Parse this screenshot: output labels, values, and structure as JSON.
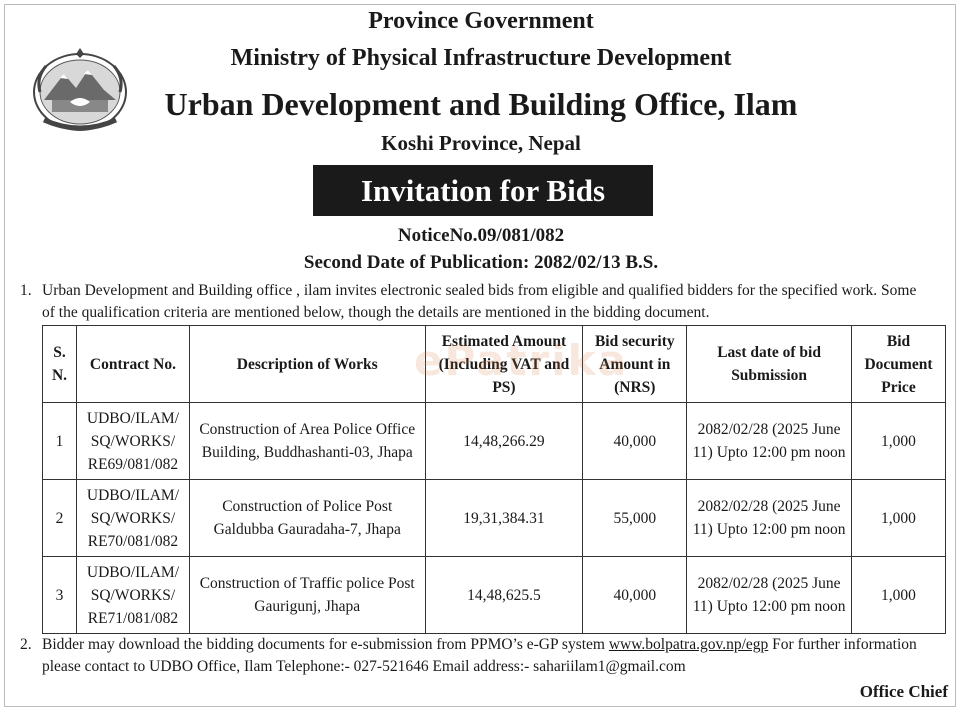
{
  "header": {
    "line1": "Province Government",
    "line2": "Ministry of Physical Infrastructure Development",
    "line3": "Urban Development and Building Office, Ilam",
    "line4": "Koshi Province, Nepal",
    "banner": "Invitation for Bids",
    "notice_no": "NoticeNo.09/081/082",
    "publication": "Second Date of Publication: 2082/02/13 B.S."
  },
  "emblem": {
    "icon": "nepal-emblem-icon"
  },
  "para1": {
    "num": "1.",
    "text": "Urban Development and Building office , ilam invites electronic sealed bids from eligible and qualified bidders for the specified work. Some of the qualification criteria are mentioned below, though the details are mentioned in the bidding document."
  },
  "table": {
    "headers": [
      "S. N.",
      "Contract No.",
      "Description of Works",
      "Estimated Amount (Including VAT and PS)",
      "Bid security Amount in (NRS)",
      "Last date of bid Submission",
      "Bid Document Price"
    ],
    "rows": [
      [
        "1",
        "UDBO/ILAM/ SQ/WORKS/ RE69/081/082",
        "Construction of Area Police Office Building, Buddhashanti-03, Jhapa",
        "14,48,266.29",
        "40,000",
        "2082/02/28 (2025 June 11) Upto 12:00 pm noon",
        "1,000"
      ],
      [
        "2",
        "UDBO/ILAM/ SQ/WORKS/ RE70/081/082",
        "Construction of Police Post Galdubba Gauradaha-7, Jhapa",
        "19,31,384.31",
        "55,000",
        "2082/02/28 (2025 June 11) Upto 12:00 pm noon",
        "1,000"
      ],
      [
        "3",
        "UDBO/ILAM/ SQ/WORKS/ RE71/081/082",
        "Construction of Traffic police Post Gaurigunj, Jhapa",
        "14,48,625.5",
        "40,000",
        "2082/02/28 (2025 June 11) Upto 12:00 pm noon",
        "1,000"
      ]
    ]
  },
  "watermark": "ePatrika",
  "para2": {
    "num": "2.",
    "text_before": "Bidder may download the bidding documents for e-submission from PPMO’s e-GP system ",
    "link": "www.bolpatra.gov.np/egp",
    "text_after": " For further information please contact to UDBO Office, Ilam Telephone:- 027-521646 Email address:- sahariilam1@gmail.com"
  },
  "footer": {
    "signatory": "Office Chief"
  }
}
